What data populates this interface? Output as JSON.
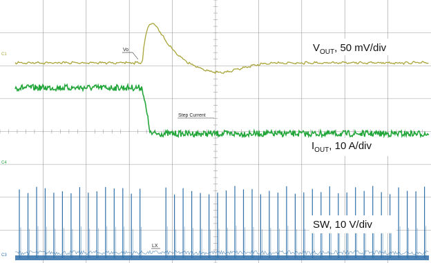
{
  "chart_data": {
    "type": "line",
    "title": "",
    "xlabel": "",
    "ylabel": "",
    "grid": true,
    "grid_divisions": {
      "x": 10,
      "y": 8
    },
    "legend": "none",
    "colors": {
      "vout": "#a8a437",
      "iout": "#22a63a",
      "sw": "#2e6fa8",
      "grid": "#9a9a9a",
      "background": "#ffffff"
    },
    "channel_markers": [
      {
        "id": "vout",
        "text": "C1"
      },
      {
        "id": "iout",
        "text": "C4"
      },
      {
        "id": "sw",
        "text": "C3"
      }
    ],
    "series": [
      {
        "id": "vout",
        "label_main": "V",
        "label_sub": "OUT",
        "label_rest": ", 50 mV/div",
        "probe_label": "Vo",
        "baseline_div": 0,
        "overshoot_div": 1.2,
        "undershoot_div": -0.3,
        "ripple_div": 0.1
      },
      {
        "id": "iout",
        "label_main": "I",
        "label_sub": "OUT",
        "label_rest": ", 10 A/div",
        "probe_label": "Step Current",
        "high_div": 0,
        "low_div": -1.4,
        "step_time_div": 3.3
      },
      {
        "id": "sw",
        "label_main": "",
        "label_sub": "",
        "label_rest": "SW, 10 V/div",
        "probe_label": "LX",
        "low_div": 0,
        "high_div": 2.2,
        "pulse_period_div": 0.2,
        "pause_start_div": 3.3,
        "pause_end_div": 3.7
      }
    ]
  }
}
